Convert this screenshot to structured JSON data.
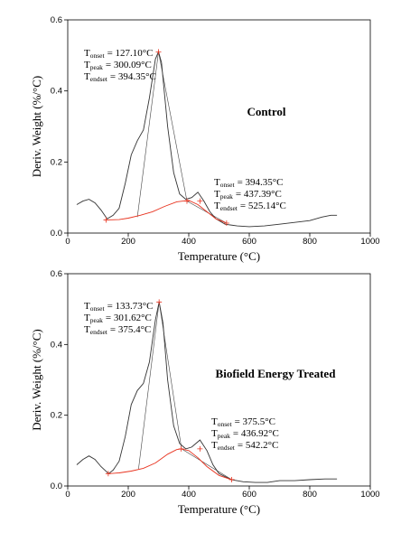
{
  "chart_data": [
    {
      "type": "line",
      "xlabel": "Temperature (°C)",
      "ylabel": "Deriv. Weight (%/°C)",
      "label": "Control",
      "xlim": [
        0,
        1000
      ],
      "xticks": [
        0,
        200,
        400,
        600,
        800,
        1000
      ],
      "ylim": [
        0,
        0.6
      ],
      "yticks": [
        {
          "value": 0,
          "label": "0.0"
        },
        0.2,
        0.4,
        0.6
      ],
      "series": [
        {
          "color": "#333333",
          "x": [
            30,
            50,
            70,
            90,
            110,
            130,
            150,
            170,
            190,
            210,
            230,
            250,
            270,
            290,
            300,
            310,
            330,
            350,
            370,
            390,
            410,
            430,
            450,
            470,
            490,
            520,
            560,
            600,
            650,
            700,
            750,
            800,
            840,
            870,
            890
          ],
          "values": [
            0.08,
            0.09,
            0.095,
            0.085,
            0.065,
            0.04,
            0.05,
            0.07,
            0.14,
            0.22,
            0.26,
            0.29,
            0.38,
            0.49,
            0.51,
            0.48,
            0.3,
            0.17,
            0.11,
            0.095,
            0.1,
            0.115,
            0.09,
            0.06,
            0.04,
            0.025,
            0.02,
            0.018,
            0.02,
            0.025,
            0.03,
            0.035,
            0.045,
            0.05,
            0.05
          ]
        },
        {
          "color": "#e8321e",
          "x": [
            130,
            170,
            200,
            240,
            280,
            320,
            360,
            400,
            430,
            460,
            490,
            520
          ],
          "values": [
            0.037,
            0.038,
            0.042,
            0.05,
            0.06,
            0.075,
            0.088,
            0.092,
            0.08,
            0.06,
            0.04,
            0.03
          ]
        }
      ],
      "tangents": [
        {
          "x": [
            230,
            300
          ],
          "values": [
            0.045,
            0.51
          ]
        },
        {
          "x": [
            300,
            394
          ],
          "values": [
            0.51,
            0.09
          ]
        },
        {
          "x": [
            394,
            525
          ],
          "values": [
            0.09,
            0.028
          ]
        }
      ],
      "markers": {
        "x": [
          127,
          300,
          394,
          437,
          525
        ],
        "values": [
          0.037,
          0.51,
          0.09,
          0.09,
          0.028
        ]
      },
      "annotations": [
        {
          "lines": [
            {
              "symbol": "T",
              "sub": "onset",
              "text": "= 127.10°C"
            },
            {
              "symbol": "T",
              "sub": "peak",
              "text": "= 300.09°C"
            },
            {
              "symbol": "T",
              "sub": "endset",
              "text": "= 394.35°C"
            }
          ]
        },
        {
          "lines": [
            {
              "symbol": "T",
              "sub": "onset",
              "text": "= 394.35°C"
            },
            {
              "symbol": "T",
              "sub": "peak",
              "text": "= 437.39°C"
            },
            {
              "symbol": "T",
              "sub": "endset",
              "text": "= 525.14°C"
            }
          ]
        }
      ]
    },
    {
      "type": "line",
      "xlabel": "Temperature (°C)",
      "ylabel": "Deriv. Weight (%/°C)",
      "label": "Biofield Energy Treated",
      "xlim": [
        0,
        1000
      ],
      "xticks": [
        0,
        200,
        400,
        600,
        800,
        1000
      ],
      "ylim": [
        0,
        0.6
      ],
      "yticks": [
        {
          "value": 0,
          "label": "0.0"
        },
        0.2,
        0.4,
        0.6
      ],
      "series": [
        {
          "color": "#333333",
          "x": [
            30,
            50,
            70,
            90,
            110,
            135,
            150,
            170,
            190,
            210,
            230,
            250,
            270,
            290,
            302,
            315,
            330,
            350,
            370,
            390,
            410,
            437,
            460,
            480,
            500,
            540,
            580,
            620,
            660,
            700,
            750,
            800,
            850,
            890
          ],
          "values": [
            0.06,
            0.075,
            0.085,
            0.075,
            0.055,
            0.035,
            0.045,
            0.07,
            0.14,
            0.23,
            0.27,
            0.29,
            0.35,
            0.47,
            0.52,
            0.46,
            0.3,
            0.17,
            0.12,
            0.105,
            0.11,
            0.13,
            0.1,
            0.06,
            0.035,
            0.018,
            0.012,
            0.01,
            0.01,
            0.015,
            0.015,
            0.018,
            0.02,
            0.02
          ]
        },
        {
          "color": "#e8321e",
          "x": [
            135,
            170,
            210,
            250,
            290,
            330,
            360,
            375,
            400,
            430,
            460,
            500,
            542
          ],
          "values": [
            0.035,
            0.037,
            0.042,
            0.05,
            0.065,
            0.09,
            0.103,
            0.105,
            0.1,
            0.08,
            0.055,
            0.03,
            0.018
          ]
        }
      ],
      "tangents": [
        {
          "x": [
            234,
            302
          ],
          "values": [
            0.048,
            0.52
          ]
        },
        {
          "x": [
            302,
            376
          ],
          "values": [
            0.52,
            0.105
          ]
        },
        {
          "x": [
            376,
            542
          ],
          "values": [
            0.105,
            0.018
          ]
        }
      ],
      "markers": {
        "x": [
          134,
          302,
          375,
          437,
          542
        ],
        "values": [
          0.035,
          0.52,
          0.105,
          0.105,
          0.018
        ]
      },
      "annotations": [
        {
          "lines": [
            {
              "symbol": "T",
              "sub": "onset",
              "text": "= 133.73°C"
            },
            {
              "symbol": "T",
              "sub": "peak",
              "text": "= 301.62°C"
            },
            {
              "symbol": "T",
              "sub": "endset",
              "text": "= 375.4°C"
            }
          ]
        },
        {
          "lines": [
            {
              "symbol": "T",
              "sub": "onset",
              "text": "= 375.5°C"
            },
            {
              "symbol": "T",
              "sub": "peak",
              "text": "= 436.92°C"
            },
            {
              "symbol": "T",
              "sub": "endset",
              "text": "= 542.2°C"
            }
          ]
        }
      ]
    }
  ]
}
